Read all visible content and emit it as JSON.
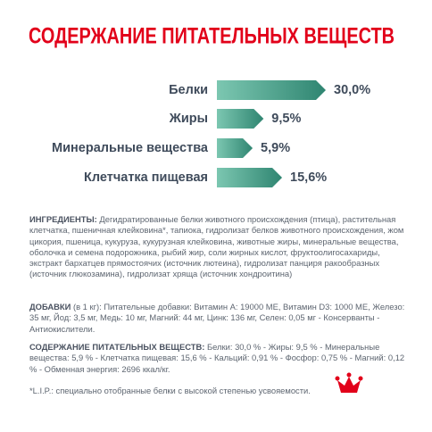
{
  "chart_data": {
    "type": "bar",
    "title": "СОДЕРЖАНИЕ ПИТАТЕЛЬНЫХ ВЕЩЕСТВ",
    "categories": [
      "Белки",
      "Жиры",
      "Минеральные вещества",
      "Клетчатка пищевая"
    ],
    "values": [
      30.0,
      9.5,
      5.9,
      15.6
    ],
    "value_labels": [
      "30,0%",
      "9,5%",
      "5,9%",
      "15,6%"
    ],
    "color": "#2f8571"
  },
  "ingredients": {
    "label": "ИНГРЕДИЕНТЫ:",
    "text": "Дегидратированные белки животного происхождения (птица), растительная клетчатка, пшеничная клейковина*, тапиока, гидролизат белков животного происхождения, жом цикория, пшеница, кукуруза, кукурузная клейковина, животные жиры, минеральные вещества, оболочка и семена подорожника, рыбий жир, соли жирных кислот, фруктоолигосахариды, экстракт бархатцев прямостоячих (источник лютеина), гидролизат панциря ракообразных (источник глюкозамина), гидролизат хряща (источник хондроитина)"
  },
  "additives": {
    "label": "ДОБАВКИ",
    "text": "(в 1 кг): Питательные добавки: Витамин А: 19000 МЕ, Витамин D3: 1000 МЕ, Железо: 35 мг, Йод: 3,5 мг, Медь: 10 мг, Магний: 44 мг, Цинк: 136 мг, Селен: 0,05 мг - Консерванты - Антиокислители."
  },
  "nutrients": {
    "label": "СОДЕРЖАНИЕ ПИТАТЕЛЬНЫХ ВЕЩЕСТВ:",
    "text": "Белки: 30,0 % - Жиры: 9,5 % - Минеральные вещества: 5,9 % - Клетчатка пищевая: 15,6 % - Кальций: 0,91 % - Фосфор: 0,75 % - Магний: 0,12 % - Обменная энергия: 2696 ккал/кг."
  },
  "footnote": "*L.I.P.: специально отобранные белки с высокой степенью усвояемости."
}
